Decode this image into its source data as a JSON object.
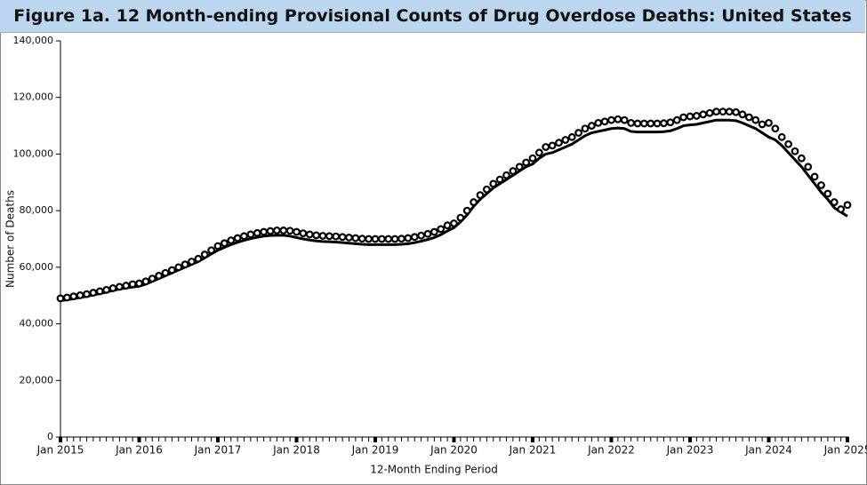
{
  "chart_data": {
    "type": "line",
    "title": "Figure 1a. 12 Month-ending Provisional Counts of Drug Overdose Deaths: United States",
    "x_label": "12-Month Ending Period",
    "y_label": "Number of Deaths",
    "categories": [
      "Jan 2015",
      null,
      null,
      null,
      null,
      null,
      null,
      null,
      null,
      null,
      null,
      null,
      "Jan 2016",
      null,
      null,
      null,
      null,
      null,
      null,
      null,
      null,
      null,
      null,
      null,
      "Jan 2017",
      null,
      null,
      null,
      null,
      null,
      null,
      null,
      null,
      null,
      null,
      null,
      "Jan 2018",
      null,
      null,
      null,
      null,
      null,
      null,
      null,
      null,
      null,
      null,
      null,
      "Jan 2019",
      null,
      null,
      null,
      null,
      null,
      null,
      null,
      null,
      null,
      null,
      null,
      "Jan 2020",
      null,
      null,
      null,
      null,
      null,
      null,
      null,
      null,
      null,
      null,
      null,
      "Jan 2021",
      null,
      null,
      null,
      null,
      null,
      null,
      null,
      null,
      null,
      null,
      null,
      "Jan 2022",
      null,
      null,
      null,
      null,
      null,
      null,
      null,
      null,
      null,
      null,
      null,
      "Jan 2023",
      null,
      null,
      null,
      null,
      null,
      null,
      null,
      null,
      null,
      null,
      null,
      "Jan 2024",
      null,
      null,
      null,
      null,
      null,
      null,
      null,
      null,
      null,
      null,
      null,
      "Jan 2025"
    ],
    "series": [
      {
        "color": "#000000",
        "mode": "markers",
        "values": [
          49000,
          49300,
          49700,
          50100,
          50500,
          51000,
          51500,
          52000,
          52600,
          53100,
          53500,
          54000,
          54300,
          55000,
          56000,
          57000,
          58000,
          59000,
          60000,
          61000,
          62000,
          63000,
          64500,
          66000,
          67500,
          68500,
          69500,
          70300,
          71000,
          71600,
          72100,
          72500,
          72800,
          73000,
          73000,
          72900,
          72500,
          72000,
          71600,
          71300,
          71100,
          71000,
          70900,
          70700,
          70500,
          70300,
          70100,
          70000,
          70000,
          70000,
          70000,
          70000,
          70100,
          70300,
          70700,
          71200,
          71800,
          72500,
          73500,
          74800,
          75500,
          77500,
          80000,
          83000,
          85500,
          87500,
          89500,
          91000,
          92500,
          94000,
          95500,
          97000,
          98500,
          100500,
          102500,
          103000,
          104000,
          105000,
          106000,
          107500,
          109000,
          110000,
          111000,
          111500,
          112000,
          112300,
          112000,
          111000,
          110800,
          110800,
          110800,
          110800,
          110900,
          111200,
          112000,
          113000,
          113300,
          113500,
          114000,
          114500,
          115000,
          115000,
          115000,
          114800,
          114000,
          113000,
          112000,
          110500,
          111000,
          109000,
          106000,
          103500,
          101000,
          98500,
          95500,
          92000,
          89000,
          86000,
          83000,
          80500,
          82000
        ]
      },
      {
        "color": "#000000",
        "mode": "lines",
        "values": [
          48200,
          48500,
          48900,
          49300,
          49700,
          50200,
          50700,
          51200,
          51800,
          52300,
          52700,
          53000,
          53300,
          54000,
          55000,
          56000,
          57000,
          58000,
          59000,
          60000,
          61000,
          62000,
          63300,
          64700,
          66000,
          67000,
          68000,
          68800,
          69500,
          70100,
          70600,
          71000,
          71200,
          71300,
          71300,
          71000,
          70500,
          70000,
          69600,
          69300,
          69100,
          69000,
          68900,
          68700,
          68500,
          68300,
          68100,
          68000,
          68000,
          68000,
          68000,
          68000,
          68100,
          68300,
          68700,
          69200,
          69800,
          70500,
          71500,
          72800,
          74000,
          76000,
          78500,
          81500,
          84000,
          86000,
          88000,
          89500,
          91000,
          92500,
          94000,
          95500,
          96500,
          98500,
          100000,
          100500,
          101500,
          102500,
          103500,
          105000,
          106500,
          107500,
          108000,
          108500,
          109000,
          109200,
          109000,
          108000,
          107800,
          107800,
          107800,
          107800,
          107900,
          108200,
          109000,
          110000,
          110300,
          110500,
          111000,
          111500,
          112000,
          112000,
          112000,
          111800,
          111000,
          110000,
          109000,
          107500,
          106000,
          105000,
          103000,
          100500,
          98000,
          95500,
          92500,
          89500,
          86500,
          84000,
          81000,
          79500,
          78000
        ]
      }
    ],
    "ylim": [
      0,
      140000
    ],
    "yticks": [
      0,
      {
        "value": 20000,
        "label": "20,000"
      },
      {
        "value": 40000,
        "label": "40,000"
      },
      {
        "value": 60000,
        "label": "60,000"
      },
      {
        "value": 80000,
        "label": "80,000"
      },
      {
        "value": 100000,
        "label": "100,000"
      },
      {
        "value": 120000,
        "label": "120,000"
      },
      {
        "value": 140000,
        "label": "140,000"
      }
    ],
    "grid": false
  }
}
